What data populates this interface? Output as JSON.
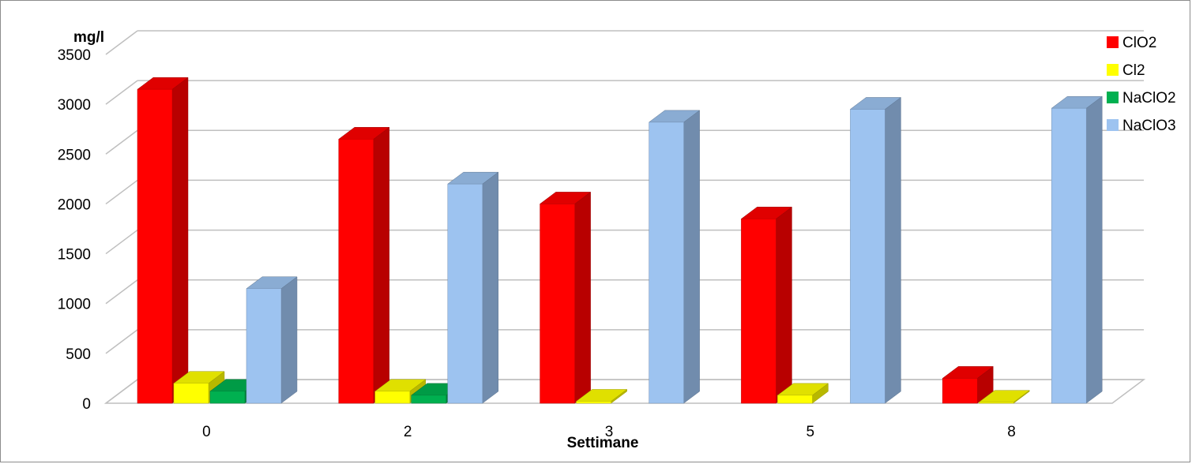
{
  "chart_data": {
    "type": "bar",
    "title": "",
    "xlabel": "Settimane",
    "ylabel": "mg/l",
    "ylim": [
      0,
      3500
    ],
    "yticks": [
      0,
      500,
      1000,
      1500,
      2000,
      2500,
      3000,
      3500
    ],
    "grid": true,
    "legend_position": "right",
    "categories": [
      "0",
      "2",
      "3",
      "5",
      "8"
    ],
    "series": [
      {
        "name": "ClO2",
        "color": "#ff0000",
        "values": [
          3150,
          2650,
          2000,
          1850,
          250
        ]
      },
      {
        "name": "Cl2",
        "color": "#ffff00",
        "values": [
          200,
          120,
          20,
          80,
          10
        ]
      },
      {
        "name": "NaClO2",
        "color": "#00b050",
        "values": [
          120,
          80,
          0,
          0,
          0
        ]
      },
      {
        "name": "NaClO3",
        "color": "#9dc3f0",
        "values": [
          1150,
          2200,
          2820,
          2950,
          2960
        ]
      }
    ]
  }
}
